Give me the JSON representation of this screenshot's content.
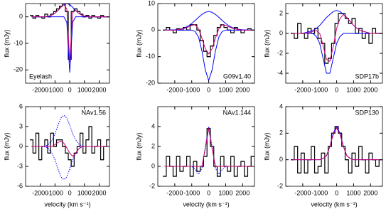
{
  "chart_data": [
    {
      "type": "line",
      "label": "Eyelash",
      "label_corner": "lower left",
      "y_label": "flux (mJy)",
      "x": [
        -2600,
        -2400,
        -2200,
        -2000,
        -1800,
        -1600,
        -1400,
        -1200,
        -1000,
        -800,
        -600,
        -400,
        -200,
        0,
        200,
        400,
        600,
        800,
        1000,
        1200,
        1400,
        1600,
        1800,
        2000,
        2200,
        2400,
        2600
      ],
      "xlim": [
        -3000,
        2700
      ],
      "xticks": [
        -2000,
        -1000,
        0,
        1000,
        2000
      ],
      "ylim": [
        -25,
        5
      ],
      "yticks": [
        -20,
        -10,
        0
      ],
      "series": [
        {
          "color": "#000000",
          "step": true,
          "values": [
            0.5,
            -0.5,
            0.5,
            0,
            -0.5,
            1,
            0,
            1,
            2,
            3,
            4,
            5,
            2,
            -16,
            2,
            3,
            2,
            1,
            0,
            0.5,
            -0.5,
            0.5,
            0,
            -0.5,
            0.5,
            0,
            0
          ]
        },
        {
          "color": "#0000ff",
          "values": [
            0,
            0,
            0,
            0,
            0,
            0.1,
            0.3,
            0.7,
            1.4,
            2.4,
            3.6,
            4.6,
            5,
            4.6,
            3.6,
            2.4,
            1.4,
            0.7,
            0.3,
            0.1,
            0,
            0,
            0,
            0,
            0,
            0,
            0
          ]
        },
        {
          "color": "#0000ff",
          "values": [
            0,
            0,
            0,
            0,
            0,
            0,
            0,
            0,
            0,
            0,
            0,
            0,
            -2,
            -21,
            -2,
            0,
            0,
            0,
            0,
            0,
            0,
            0,
            0,
            0,
            0,
            0,
            0
          ]
        },
        {
          "color": "#cc0077",
          "values": [
            0,
            0,
            0,
            0,
            0,
            0.1,
            0.3,
            0.7,
            1.4,
            2.4,
            3.6,
            4.6,
            3,
            -17,
            1.6,
            2.4,
            1.4,
            0.7,
            0.3,
            0.1,
            0,
            0,
            0,
            0,
            0,
            0,
            0
          ]
        }
      ]
    },
    {
      "type": "line",
      "label": "G09v1.40",
      "label_corner": "lower right",
      "y_label": "flux (mJy)",
      "x": [
        -2600,
        -2400,
        -2200,
        -2000,
        -1800,
        -1600,
        -1400,
        -1200,
        -1000,
        -800,
        -600,
        -400,
        -200,
        0,
        200,
        400,
        600,
        800,
        1000,
        1200,
        1400,
        1600,
        1800,
        2000,
        2200,
        2400,
        2600
      ],
      "xlim": [
        -3000,
        2700
      ],
      "xticks": [
        -2000,
        -1000,
        0,
        1000,
        2000
      ],
      "ylim": [
        -20,
        10
      ],
      "yticks": [
        -20,
        -10,
        0,
        10
      ],
      "series": [
        {
          "color": "#000000",
          "step": true,
          "values": [
            0,
            1,
            0,
            -1,
            0.5,
            0,
            1,
            0,
            2,
            2,
            0,
            -4,
            -8,
            -10,
            -6,
            -2,
            1,
            2,
            1,
            0,
            -1,
            1,
            0,
            -1,
            0,
            0.5,
            0
          ]
        },
        {
          "color": "#0000ff",
          "values": [
            0,
            0,
            0.1,
            0.1,
            0.3,
            0.5,
            0.9,
            1.6,
            2.5,
            3.6,
            4.8,
            5.9,
            6.7,
            7,
            6.7,
            5.9,
            4.8,
            3.6,
            2.5,
            1.6,
            0.9,
            0.5,
            0.3,
            0.1,
            0.1,
            0,
            0
          ]
        },
        {
          "color": "#0000ff",
          "values": [
            0,
            0,
            0,
            0,
            0,
            0,
            0,
            0,
            0,
            -0.5,
            -2.6,
            -7.8,
            -15,
            -19,
            -15,
            -7.8,
            -2.6,
            -0.5,
            0,
            0,
            0,
            0,
            0,
            0,
            0,
            0,
            0
          ]
        },
        {
          "color": "#cc0077",
          "values": [
            0,
            0,
            0,
            0,
            0.2,
            0.4,
            0.7,
            1.2,
            1.8,
            2,
            0.5,
            -3,
            -7,
            -9,
            -7,
            -3,
            0.5,
            2,
            1.8,
            1.2,
            0.7,
            0.4,
            0.2,
            0,
            0,
            0,
            0
          ]
        }
      ]
    },
    {
      "type": "line",
      "label": "SDP17b",
      "label_corner": "lower right",
      "y_label": "flux (mJy)",
      "x": [
        -2600,
        -2400,
        -2200,
        -2000,
        -1800,
        -1600,
        -1400,
        -1200,
        -1000,
        -800,
        -600,
        -400,
        -200,
        0,
        200,
        400,
        600,
        800,
        1000,
        1200,
        1400,
        1600,
        1800,
        2000,
        2200,
        2400,
        2600
      ],
      "xlim": [
        -3000,
        2700
      ],
      "xticks": [
        -2000,
        -1000,
        0,
        1000,
        2000
      ],
      "ylim": [
        -5,
        3
      ],
      "yticks": [
        -4,
        -2,
        0,
        2
      ],
      "series": [
        {
          "color": "#000000",
          "step": true,
          "values": [
            0,
            -0.5,
            1,
            0,
            -0.5,
            0.5,
            0,
            0.5,
            -0.5,
            -1,
            -3,
            -2.5,
            -1,
            1,
            2,
            2,
            1.5,
            1,
            1.5,
            0,
            0.5,
            -0.5,
            0,
            -1,
            0.5,
            0,
            0
          ]
        },
        {
          "color": "#0000ff",
          "values": [
            0,
            0,
            0,
            0,
            0.1,
            0.2,
            0.3,
            0.5,
            0.8,
            1.2,
            1.6,
            1.9,
            2.2,
            2.3,
            2.2,
            1.9,
            1.6,
            1.2,
            0.8,
            0.5,
            0.3,
            0.2,
            0.1,
            0,
            0,
            0,
            0
          ]
        },
        {
          "color": "#0000ff",
          "values": [
            0,
            0,
            0,
            0,
            0,
            0,
            0,
            -0.3,
            -1,
            -2.5,
            -4,
            -4,
            -2.5,
            -1,
            -0.3,
            0,
            0,
            0,
            0,
            0,
            0,
            0,
            0,
            0,
            0,
            0,
            0
          ]
        },
        {
          "color": "#cc0077",
          "values": [
            0,
            0,
            0,
            0,
            0,
            0.1,
            0.2,
            0.3,
            0,
            -1.2,
            -2.6,
            -2.8,
            -1.3,
            0.5,
            1.5,
            1.9,
            1.6,
            1.2,
            0.8,
            0.5,
            0.3,
            0.2,
            0.1,
            0,
            0,
            0,
            0
          ]
        }
      ]
    },
    {
      "type": "line",
      "label": "NAv1.56",
      "label_corner": "upper right",
      "y_label": "flux (mJy)",
      "x_label": "velocity (km s⁻¹)",
      "x": [
        -2600,
        -2400,
        -2200,
        -2000,
        -1800,
        -1600,
        -1400,
        -1200,
        -1000,
        -800,
        -600,
        -400,
        -200,
        0,
        200,
        400,
        600,
        800,
        1000,
        1200,
        1400,
        1600,
        1800,
        2000,
        2200,
        2400,
        2600
      ],
      "xlim": [
        -3000,
        2700
      ],
      "xticks": [
        -2000,
        -1000,
        0,
        1000,
        2000
      ],
      "ylim": [
        -6,
        6
      ],
      "yticks": [
        -6,
        -3,
        0,
        3,
        6
      ],
      "series": [
        {
          "color": "#000000",
          "step": true,
          "values": [
            1,
            -1,
            2,
            -2,
            0,
            1,
            -1,
            2,
            0,
            1,
            1,
            0,
            -1,
            -2,
            -3,
            -1,
            0,
            2,
            -1,
            1,
            3,
            -1,
            0,
            1,
            -2,
            0,
            1
          ]
        },
        {
          "color": "#0000ff",
          "dashed": true,
          "values": [
            0,
            0,
            0,
            0,
            0,
            0.1,
            0.4,
            1,
            1.9,
            3.2,
            4.3,
            4.7,
            4.3,
            3.2,
            1.9,
            1,
            0.4,
            0.1,
            0,
            0,
            0,
            0,
            0,
            0,
            0,
            0,
            0
          ]
        },
        {
          "color": "#0000ff",
          "dashed": true,
          "values": [
            0,
            0,
            0,
            0,
            0,
            -0.1,
            -0.4,
            -1.1,
            -2,
            -3.4,
            -4.6,
            -5,
            -4.6,
            -3.4,
            -2,
            -1.1,
            -0.4,
            -0.1,
            0,
            0,
            0,
            0,
            0,
            0,
            0,
            0,
            0
          ]
        },
        {
          "color": "#cc0077",
          "values": [
            0,
            0,
            0,
            0,
            0,
            0,
            0,
            0,
            0.3,
            0.6,
            0.8,
            0.5,
            -0.2,
            -1,
            -1.5,
            -1,
            -0.4,
            0,
            0,
            0,
            0,
            0,
            0,
            0,
            0,
            0,
            0
          ]
        }
      ]
    },
    {
      "type": "line",
      "label": "NAv1.144",
      "label_corner": "upper right",
      "y_label": "flux (mJy)",
      "x_label": "velocity (km s⁻¹)",
      "x": [
        -2600,
        -2400,
        -2200,
        -2000,
        -1800,
        -1600,
        -1400,
        -1200,
        -1000,
        -800,
        -600,
        -400,
        -200,
        0,
        200,
        400,
        600,
        800,
        1000,
        1200,
        1400,
        1600,
        1800,
        2000,
        2200,
        2400,
        2600
      ],
      "xlim": [
        -3000,
        2700
      ],
      "xticks": [
        -2000,
        -1000,
        0,
        1000,
        2000
      ],
      "ylim": [
        -2,
        6
      ],
      "yticks": [
        -2,
        0,
        2,
        4
      ],
      "series": [
        {
          "color": "#000000",
          "step": true,
          "values": [
            -1,
            1,
            0,
            -1,
            1,
            -0.5,
            0,
            1,
            -1,
            0.5,
            -0.5,
            0,
            1,
            3.8,
            2,
            0,
            -1,
            1,
            0,
            -0.5,
            1,
            -1,
            0,
            0.5,
            -1,
            0,
            1
          ]
        },
        {
          "color": "#0000ff",
          "dashed": true,
          "values": [
            0,
            0,
            0,
            0,
            0,
            0,
            0,
            0,
            0,
            -0.3,
            -0.8,
            -0.2,
            2,
            4,
            2,
            -0.2,
            -0.8,
            -0.3,
            0,
            0,
            0,
            0,
            0,
            0,
            0,
            0,
            0
          ]
        },
        {
          "color": "#cc0077",
          "values": [
            0,
            0,
            0,
            0,
            0,
            0,
            0,
            0,
            0,
            0,
            0,
            0,
            1.8,
            3.8,
            1.8,
            0,
            0,
            0,
            0,
            0,
            0,
            0,
            0,
            0,
            0,
            0,
            0
          ]
        }
      ]
    },
    {
      "type": "line",
      "label": "SDP130",
      "label_corner": "upper right",
      "y_label": "flux (mJy)",
      "x_label": "velocity (km s⁻¹)",
      "x": [
        -2600,
        -2400,
        -2200,
        -2000,
        -1800,
        -1600,
        -1400,
        -1200,
        -1000,
        -800,
        -600,
        -400,
        -200,
        0,
        200,
        400,
        600,
        800,
        1000,
        1200,
        1400,
        1600,
        1800,
        2000,
        2200,
        2400,
        2600
      ],
      "xlim": [
        -3000,
        2700
      ],
      "xticks": [
        -2000,
        -1000,
        0,
        1000,
        2000
      ],
      "ylim": [
        -2,
        4
      ],
      "yticks": [
        -2,
        0,
        2,
        4
      ],
      "series": [
        {
          "color": "#000000",
          "step": true,
          "values": [
            0,
            1,
            -1,
            0.5,
            -1,
            0,
            1,
            -1,
            -0.5,
            0.5,
            -1,
            1,
            2,
            2.5,
            2,
            1,
            0,
            -1,
            0.5,
            -0.5,
            1,
            0,
            -1,
            0.5,
            0,
            -0.5,
            0
          ]
        },
        {
          "color": "#0000ff",
          "values": [
            0,
            0,
            0,
            0,
            0,
            0,
            0,
            0,
            0,
            0.1,
            0.3,
            1,
            2,
            2.5,
            2,
            1,
            0.3,
            0.1,
            0,
            0,
            0,
            0,
            0,
            0,
            0,
            0,
            0
          ]
        },
        {
          "color": "#cc0077",
          "values": [
            0,
            0,
            0,
            0,
            0,
            0,
            0,
            0,
            0,
            0.1,
            0.3,
            1,
            1.9,
            2.4,
            1.9,
            1,
            0.3,
            0.1,
            0,
            0,
            0,
            0,
            0,
            0,
            0,
            0,
            0
          ]
        }
      ]
    }
  ]
}
